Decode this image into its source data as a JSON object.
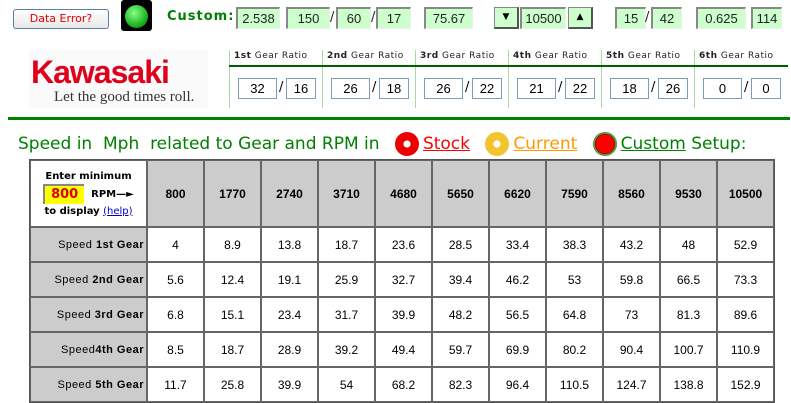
{
  "header": {
    "data_error_label": "Data Error?",
    "custom_label": "Custom:",
    "custom_values": {
      "v1": "2.538",
      "v2": "150",
      "v3": "60",
      "v4": "17",
      "v5": "75.67",
      "rpm": "10500",
      "sprocket_front": "15",
      "sprocket_rear": "42",
      "v9": "0.625",
      "v10": "114"
    },
    "down_arrow": "▼",
    "up_arrow": "▲",
    "slash": "/"
  },
  "logo": {
    "brand": "Kawasaki",
    "tagline": "Let the good times roll."
  },
  "gears": [
    {
      "ord": "1st",
      "label": "Gear Ratio",
      "a": "32",
      "b": "16"
    },
    {
      "ord": "2nd",
      "label": "Gear Ratio",
      "a": "26",
      "b": "18"
    },
    {
      "ord": "3rd",
      "label": "Gear Ratio",
      "a": "26",
      "b": "22"
    },
    {
      "ord": "4th",
      "label": "Gear Ratio",
      "a": "21",
      "b": "22"
    },
    {
      "ord": "5th",
      "label": "Gear Ratio",
      "a": "18",
      "b": "26"
    },
    {
      "ord": "6th",
      "label": "Gear Ratio",
      "a": "0",
      "b": "0"
    }
  ],
  "title": {
    "speed_in": "Speed in",
    "unit": "Mph",
    "related": "related to Gear and RPM in",
    "stock": "Stock",
    "current": "Current",
    "custom": "Custom",
    "setup": "Setup:"
  },
  "colors": {
    "stock": "#ff0000",
    "current": "#ff9900",
    "custom": "#008000"
  },
  "table": {
    "corner_line1": "Enter minimum",
    "min_rpm": "800",
    "rpm_arrow": "RPM—►",
    "to_display": "to display",
    "help": "(help)",
    "rpm": [
      "800",
      "1770",
      "2740",
      "3710",
      "4680",
      "5650",
      "6620",
      "7590",
      "8560",
      "9530",
      "10500"
    ],
    "rows": [
      {
        "prefix": "Speed ",
        "gear": "1st Gear",
        "values": [
          "4",
          "8.9",
          "13.8",
          "18.7",
          "23.6",
          "28.5",
          "33.4",
          "38.3",
          "43.2",
          "48",
          "52.9"
        ]
      },
      {
        "prefix": "Speed ",
        "gear": "2nd Gear",
        "values": [
          "5.6",
          "12.4",
          "19.1",
          "25.9",
          "32.7",
          "39.4",
          "46.2",
          "53",
          "59.8",
          "66.5",
          "73.3"
        ]
      },
      {
        "prefix": "Speed ",
        "gear": "3rd Gear",
        "values": [
          "6.8",
          "15.1",
          "23.4",
          "31.7",
          "39.9",
          "48.2",
          "56.5",
          "64.8",
          "73",
          "81.3",
          "89.6"
        ]
      },
      {
        "prefix": "Speed",
        "gear": "4th Gear",
        "values": [
          "8.5",
          "18.7",
          "28.9",
          "39.2",
          "49.4",
          "59.7",
          "69.9",
          "80.2",
          "90.4",
          "100.7",
          "110.9"
        ]
      },
      {
        "prefix": "Speed ",
        "gear": "5th Gear",
        "values": [
          "11.7",
          "25.8",
          "39.9",
          "54",
          "68.2",
          "82.3",
          "96.4",
          "110.5",
          "124.7",
          "138.8",
          "152.9"
        ]
      }
    ]
  }
}
